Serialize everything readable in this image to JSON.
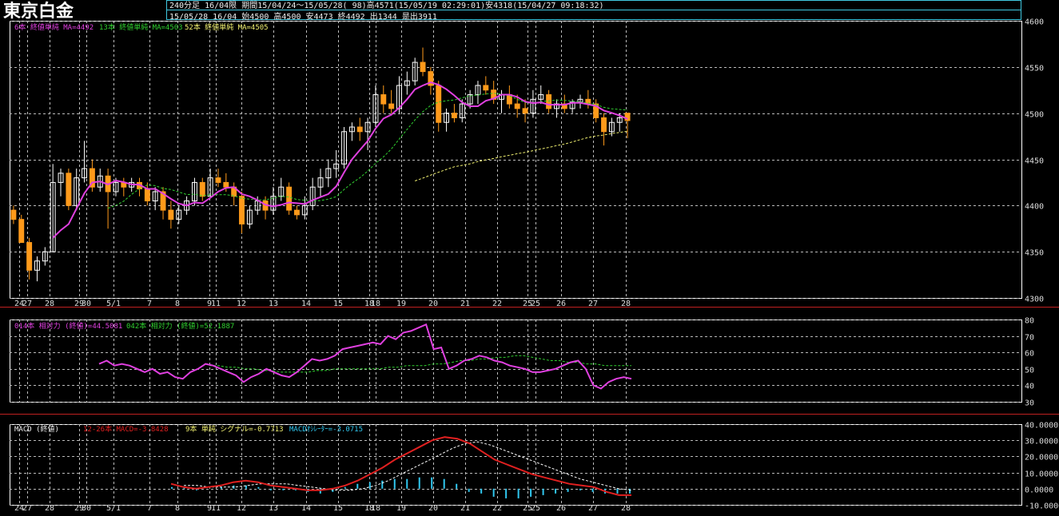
{
  "header": {
    "title": "東京白金",
    "line1": "240分足 16/04限 期間15/04/24～15/05/28( 98)高4571(15/05/19 02:29:01)安4318(15/04/27 09:18:32)",
    "line2": "15/05/28 16/04 始4500 高4500 安4473 終4492 出1344 是出3911"
  },
  "legends": {
    "ma6": "6本 終値単純 MA=4492",
    "ma13": "13本 終値単純 MA=4503",
    "ma52": "52本 終値単純 MA=4505",
    "rsi14": "014本 相対力 (終値)=44.5081",
    "rsi42": "042本 相対力 (終値)=52.1887",
    "macd_name": "MACD (終値)",
    "macd_line": "12-26本 MACD=-3.8428",
    "macd_signal": "9本 単純 シグナル=-0.7713",
    "macd_osc": "MACDｵｼﾚｰﾀｰ=-3.0715"
  },
  "colors": {
    "up": "#ffffff",
    "down": "#ff9a1a",
    "ma6": "#e040e0",
    "ma13": "#30d030",
    "ma52": "#f0f070",
    "macd": "#e02020",
    "signal": "#ffffff",
    "osc": "#30c8f0",
    "frame": "#ffffff",
    "separator": "#c02020"
  },
  "chart_data": [
    {
      "type": "candlestick",
      "name": "price",
      "x_labels": [
        "24",
        "27",
        "28",
        "29",
        "30",
        "5/1",
        "7",
        "8",
        "9",
        "11",
        "12",
        "13",
        "14",
        "15",
        "18",
        "18",
        "19",
        "20",
        "21",
        "22",
        "25",
        "25",
        "26",
        "27",
        "28"
      ],
      "ylim": [
        4300,
        4600
      ],
      "y_ticks": [
        4300,
        4350,
        4400,
        4450,
        4500,
        4550,
        4600
      ],
      "grid": true,
      "ohlc": [
        [
          4395,
          4400,
          4380,
          4385
        ],
        [
          4385,
          4390,
          4360,
          4360
        ],
        [
          4360,
          4365,
          4320,
          4330
        ],
        [
          4330,
          4345,
          4318,
          4340
        ],
        [
          4340,
          4355,
          4335,
          4350
        ],
        [
          4350,
          4445,
          4350,
          4425
        ],
        [
          4425,
          4440,
          4410,
          4435
        ],
        [
          4435,
          4440,
          4395,
          4400
        ],
        [
          4400,
          4440,
          4395,
          4430
        ],
        [
          4430,
          4470,
          4425,
          4440
        ],
        [
          4440,
          4450,
          4415,
          4420
        ],
        [
          4420,
          4440,
          4415,
          4432
        ],
        [
          4432,
          4440,
          4375,
          4415
        ],
        [
          4415,
          4430,
          4410,
          4425
        ],
        [
          4425,
          4430,
          4410,
          4420
        ],
        [
          4420,
          4430,
          4415,
          4425
        ],
        [
          4425,
          4430,
          4410,
          4418
        ],
        [
          4418,
          4425,
          4400,
          4405
        ],
        [
          4405,
          4420,
          4395,
          4415
        ],
        [
          4415,
          4420,
          4385,
          4395
        ],
        [
          4395,
          4405,
          4375,
          4385
        ],
        [
          4385,
          4400,
          4380,
          4395
        ],
        [
          4395,
          4410,
          4390,
          4405
        ],
        [
          4405,
          4430,
          4400,
          4425
        ],
        [
          4425,
          4430,
          4405,
          4410
        ],
        [
          4410,
          4440,
          4410,
          4430
        ],
        [
          4430,
          4440,
          4420,
          4425
        ],
        [
          4425,
          4435,
          4415,
          4420
        ],
        [
          4420,
          4425,
          4400,
          4410
        ],
        [
          4410,
          4415,
          4370,
          4380
        ],
        [
          4380,
          4400,
          4375,
          4395
        ],
        [
          4395,
          4410,
          4390,
          4405
        ],
        [
          4405,
          4410,
          4385,
          4395
        ],
        [
          4395,
          4420,
          4390,
          4410
        ],
        [
          4410,
          4430,
          4405,
          4420
        ],
        [
          4420,
          4425,
          4390,
          4395
        ],
        [
          4395,
          4400,
          4385,
          4390
        ],
        [
          4390,
          4410,
          4385,
          4400
        ],
        [
          4400,
          4430,
          4395,
          4420
        ],
        [
          4420,
          4440,
          4410,
          4430
        ],
        [
          4430,
          4450,
          4420,
          4440
        ],
        [
          4440,
          4460,
          4430,
          4445
        ],
        [
          4445,
          4485,
          4440,
          4480
        ],
        [
          4480,
          4490,
          4470,
          4485
        ],
        [
          4485,
          4495,
          4470,
          4480
        ],
        [
          4480,
          4495,
          4460,
          4490
        ],
        [
          4490,
          4530,
          4485,
          4520
        ],
        [
          4520,
          4530,
          4500,
          4510
        ],
        [
          4510,
          4525,
          4500,
          4505
        ],
        [
          4505,
          4540,
          4500,
          4530
        ],
        [
          4530,
          4545,
          4520,
          4535
        ],
        [
          4535,
          4560,
          4530,
          4555
        ],
        [
          4555,
          4571,
          4540,
          4545
        ],
        [
          4545,
          4550,
          4520,
          4530
        ],
        [
          4530,
          4535,
          4480,
          4490
        ],
        [
          4490,
          4505,
          4480,
          4500
        ],
        [
          4500,
          4510,
          4490,
          4495
        ],
        [
          4495,
          4515,
          4490,
          4510
        ],
        [
          4510,
          4525,
          4505,
          4520
        ],
        [
          4520,
          4535,
          4510,
          4530
        ],
        [
          4530,
          4540,
          4520,
          4525
        ],
        [
          4525,
          4535,
          4510,
          4515
        ],
        [
          4515,
          4525,
          4500,
          4520
        ],
        [
          4520,
          4530,
          4505,
          4510
        ],
        [
          4510,
          4520,
          4495,
          4505
        ],
        [
          4505,
          4515,
          4490,
          4500
        ],
        [
          4500,
          4525,
          4495,
          4515
        ],
        [
          4515,
          4530,
          4510,
          4520
        ],
        [
          4520,
          4525,
          4500,
          4505
        ],
        [
          4505,
          4515,
          4495,
          4510
        ],
        [
          4510,
          4520,
          4500,
          4505
        ],
        [
          4505,
          4515,
          4500,
          4512
        ],
        [
          4512,
          4520,
          4505,
          4515
        ],
        [
          4515,
          4525,
          4505,
          4510
        ],
        [
          4510,
          4515,
          4490,
          4495
        ],
        [
          4495,
          4500,
          4465,
          4480
        ],
        [
          4480,
          4495,
          4475,
          4490
        ],
        [
          4490,
          4500,
          4480,
          4495
        ],
        [
          4500,
          4500,
          4473,
          4492
        ]
      ]
    },
    {
      "type": "line",
      "name": "rsi",
      "x_labels": [
        "24",
        "27",
        "28",
        "29",
        "30",
        "5/1",
        "7",
        "8",
        "9",
        "11",
        "12",
        "13",
        "14",
        "15",
        "18",
        "18",
        "19",
        "20",
        "21",
        "22",
        "25",
        "25",
        "26",
        "27",
        "28"
      ],
      "ylim": [
        30,
        80
      ],
      "y_ticks": [
        30,
        40,
        50,
        60,
        70,
        80
      ],
      "series": [
        {
          "name": "014本 相対力 (終値)",
          "values": [
            53,
            55,
            52,
            53,
            52,
            50,
            48,
            50,
            47,
            48,
            45,
            44,
            48,
            50,
            53,
            52,
            50,
            48,
            46,
            42,
            45,
            47,
            50,
            48,
            46,
            45,
            48,
            52,
            56,
            55,
            56,
            58,
            62,
            63,
            64,
            65,
            66,
            65,
            70,
            68,
            72,
            73,
            75,
            77,
            62,
            63,
            50,
            52,
            55,
            56,
            58,
            57,
            55,
            54,
            52,
            51,
            50,
            48,
            48,
            49,
            50,
            52,
            54,
            55,
            50,
            40,
            38,
            42,
            44,
            45,
            44
          ]
        },
        {
          "name": "042本 相対力 (終値)",
          "values": [
            52,
            52,
            51,
            51,
            50,
            50,
            49,
            49,
            48,
            48,
            48,
            48,
            49,
            49,
            50,
            50,
            50,
            50,
            50,
            50,
            51,
            51,
            52,
            52,
            52,
            53,
            53,
            54,
            55,
            55,
            56,
            56,
            57,
            57,
            58,
            58,
            57,
            56,
            55,
            55,
            54,
            54,
            53,
            53,
            52,
            52,
            52,
            52
          ]
        }
      ]
    },
    {
      "type": "line",
      "name": "macd",
      "x_labels": [
        "24",
        "27",
        "28",
        "29",
        "30",
        "5/1",
        "7",
        "8",
        "9",
        "11",
        "12",
        "13",
        "14",
        "15",
        "18",
        "18",
        "19",
        "20",
        "21",
        "22",
        "25",
        "25",
        "26",
        "27",
        "28"
      ],
      "ylim": [
        -10,
        40
      ],
      "y_ticks": [
        -10,
        0,
        10,
        20,
        30,
        40
      ],
      "series": [
        {
          "name": "12-26本 MACD",
          "values": [
            3,
            1,
            0,
            1,
            2,
            4,
            5,
            4,
            2,
            1,
            0,
            -1,
            -1,
            0,
            2,
            5,
            9,
            13,
            18,
            22,
            26,
            30,
            32,
            31,
            28,
            23,
            18,
            15,
            12,
            9,
            7,
            5,
            3,
            2,
            1,
            -2,
            -4,
            -4
          ]
        },
        {
          "name": "9本 単純 シグナル",
          "values": [
            2,
            2,
            1,
            1,
            1,
            2,
            3,
            3,
            3,
            2,
            1,
            0,
            -1,
            -1,
            0,
            2,
            5,
            9,
            13,
            17,
            21,
            25,
            28,
            29,
            27,
            24,
            21,
            18,
            15,
            12,
            9,
            6,
            4,
            2,
            0,
            -1
          ]
        },
        {
          "name": "MACDｵｼﾚｰﾀｰ",
          "values": [
            1,
            1,
            -1,
            0,
            1,
            2,
            2,
            1,
            -1,
            -1,
            -1,
            -2,
            -3,
            -2,
            1,
            3,
            4,
            5,
            6,
            6,
            7,
            7,
            6,
            3,
            -2,
            -3,
            -5,
            -6,
            -6,
            -5,
            -4,
            -3,
            -2,
            -1,
            -2,
            -3,
            -3,
            -3
          ]
        }
      ]
    }
  ]
}
